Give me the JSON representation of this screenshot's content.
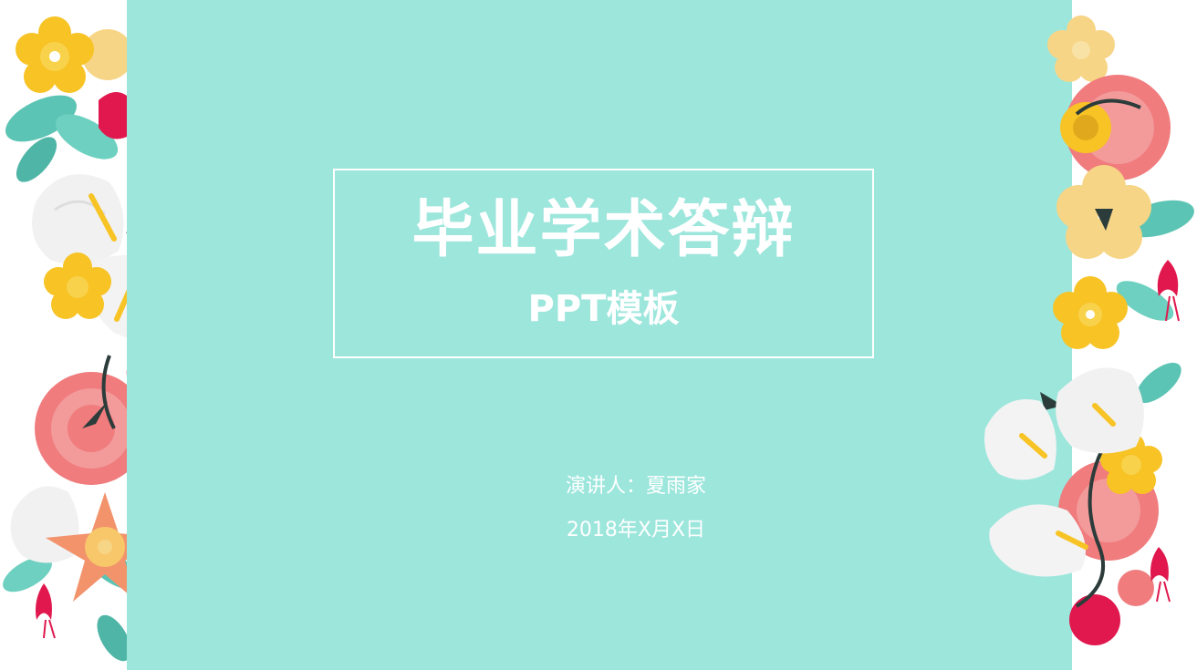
{
  "slide": {
    "title": "毕业学术答辩",
    "subtitle": "PPT模板",
    "speaker": "演讲人：夏雨家",
    "date": "2018年X月X日"
  },
  "colors": {
    "background": "#ffffff",
    "panel": "#9ce6dc",
    "text": "#ffffff",
    "flower_yellow": "#f7c325",
    "flower_pale_yellow": "#f7d586",
    "flower_pink": "#f07c7e",
    "flower_red": "#e0184e",
    "flower_white": "#f3f3f3",
    "leaf_teal": "#5cc4b4",
    "stem_dark": "#2c3c3a"
  },
  "icons": [
    "flower-cluster-left",
    "flower-cluster-right"
  ]
}
